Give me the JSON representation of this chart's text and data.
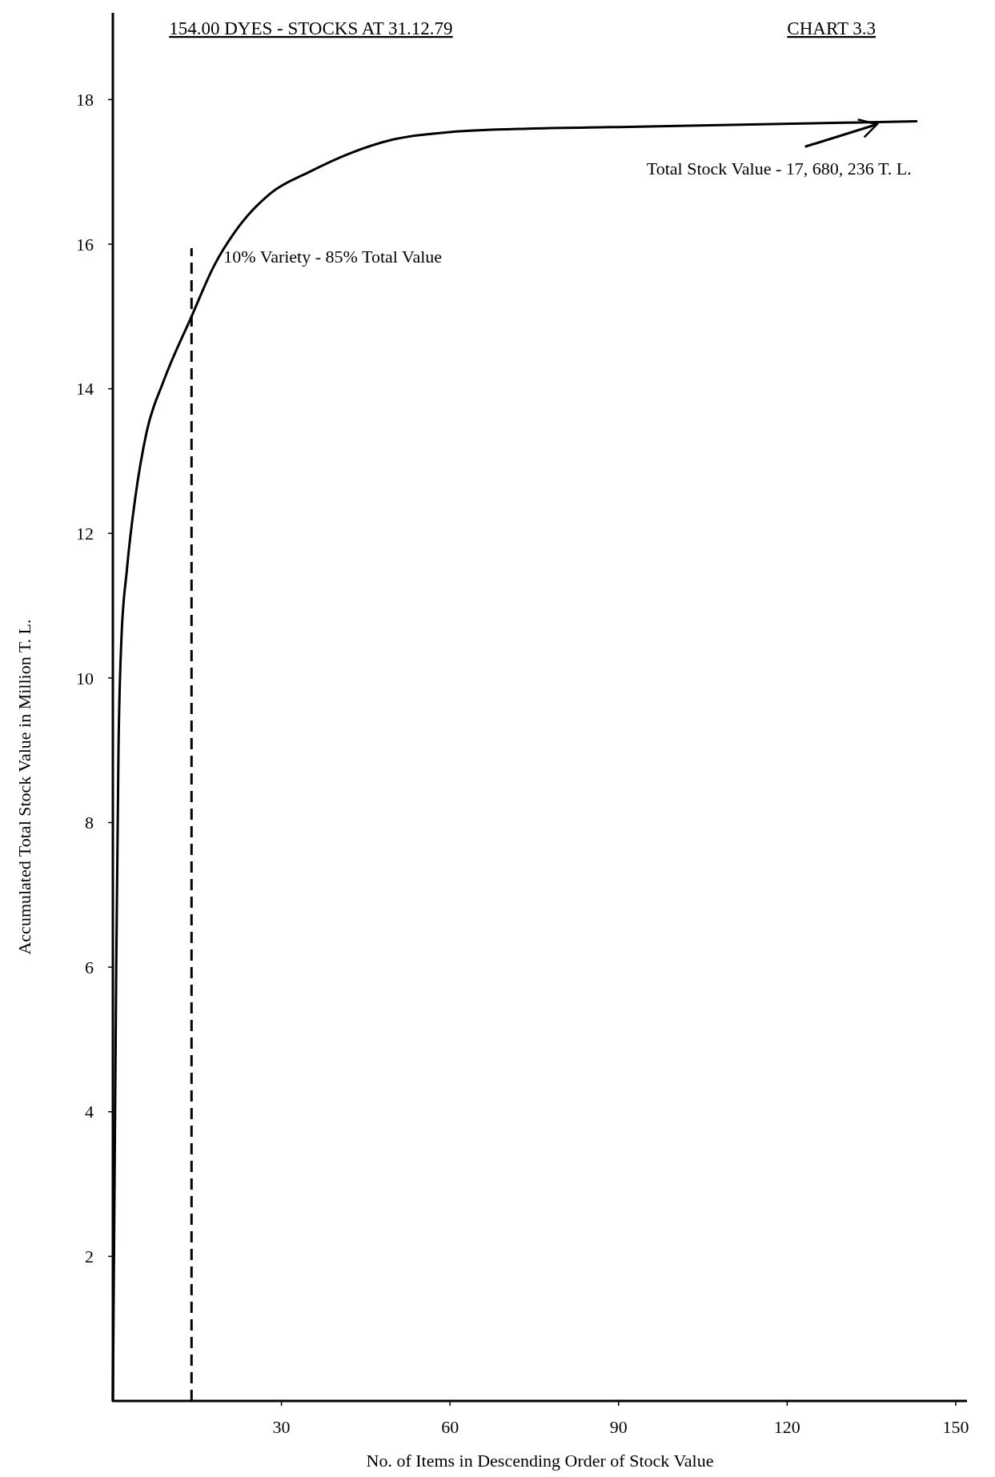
{
  "chart_data": {
    "type": "line",
    "title": "154.00 DYES - STOCKS AT 31.12.79",
    "xlabel": "No. of Items in Descending Order of Stock Value",
    "ylabel": "Accumulated Total Stock Value in Million T. L.",
    "x": [
      0,
      0.3,
      0.6,
      1,
      1.5,
      2.5,
      4,
      6,
      9,
      14,
      18,
      22,
      28,
      35,
      42,
      50,
      60,
      75,
      90,
      110,
      130,
      143
    ],
    "series": [
      {
        "color": "#000000",
        "values": [
          0,
          3,
          6,
          9,
          10.5,
          11.5,
          12.5,
          13.4,
          14.1,
          15.0,
          15.7,
          16.2,
          16.7,
          17.0,
          17.25,
          17.45,
          17.55,
          17.6,
          17.62,
          17.65,
          17.68,
          17.7
        ]
      }
    ],
    "xlim": [
      0,
      152
    ],
    "ylim": [
      0,
      19.2
    ],
    "xticks": [
      30,
      60,
      90,
      120,
      150
    ],
    "yticks": [
      2,
      4,
      6,
      8,
      10,
      12,
      14,
      16,
      18
    ],
    "ref_lines": [
      {
        "axis": "x",
        "value": 14,
        "label": "10% Variety - 85% Total Value",
        "line_style": "dashed",
        "color": "#000000"
      }
    ],
    "annotations": [
      "CHART 3.3",
      {
        "text": "Total Stock Value - 17, 680, 236 T. L.",
        "x": 136,
        "y": 17.68
      }
    ],
    "grid": false,
    "marker": "none",
    "line_style": "solid"
  }
}
